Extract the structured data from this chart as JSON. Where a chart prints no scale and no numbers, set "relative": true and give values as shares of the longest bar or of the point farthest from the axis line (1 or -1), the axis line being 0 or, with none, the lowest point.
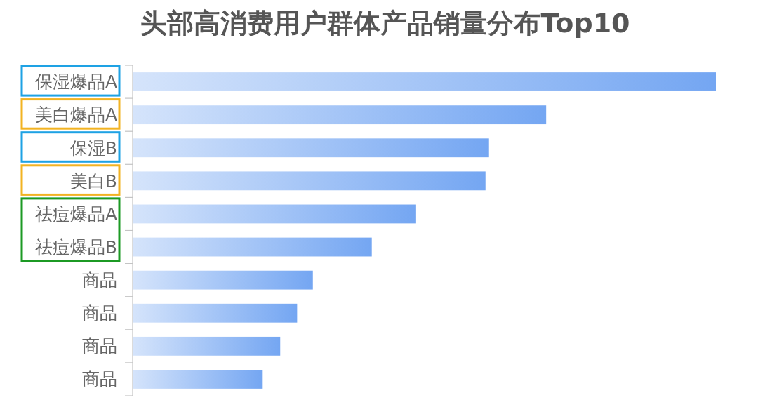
{
  "chart_data": {
    "type": "bar",
    "orientation": "horizontal",
    "relative": true,
    "title": "头部高消费用户群体产品销量分布Top10",
    "categories": [
      "保湿爆品A",
      "美白爆品A",
      "保湿B",
      "美白B",
      "祛痘爆品A",
      "祛痘爆品B",
      "商品",
      "商品",
      "商品",
      "商品"
    ],
    "values": [
      1,
      0.709,
      0.611,
      0.605,
      0.486,
      0.41,
      0.309,
      0.282,
      0.253,
      0.223
    ],
    "color": "#74a6f2"
  }
}
